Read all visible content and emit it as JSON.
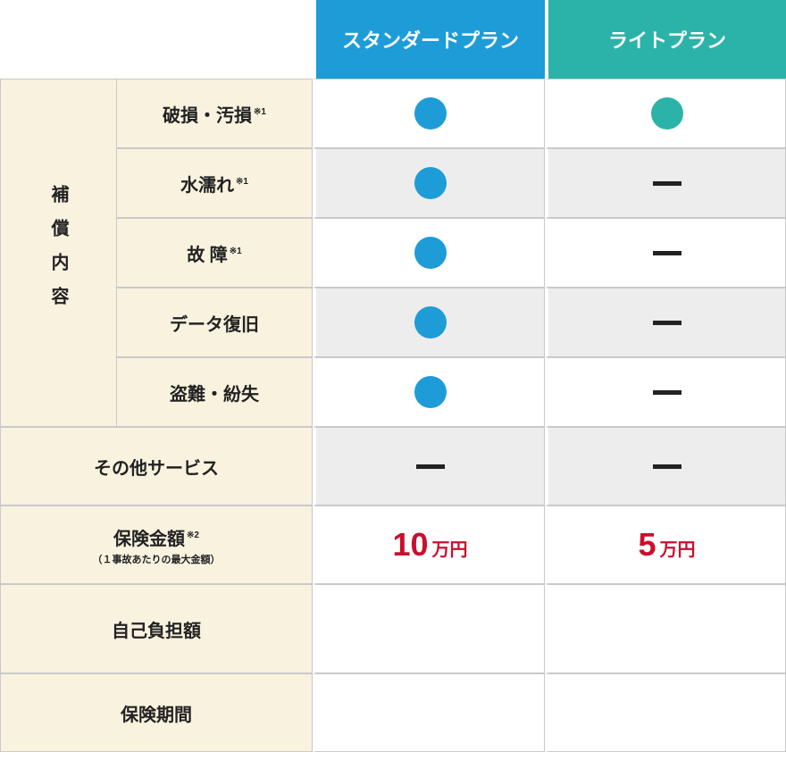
{
  "header": {
    "plan_standard": "スタンダードプラン",
    "plan_light": "ライトプラン"
  },
  "vcategory": "補償内容",
  "rows": {
    "r1": {
      "label": "破損・汚損",
      "note": "※1"
    },
    "r2": {
      "label": "水濡れ",
      "note": "※1"
    },
    "r3": {
      "label": "故  障",
      "note": "※1"
    },
    "r4": {
      "label": "データ復旧"
    },
    "r5": {
      "label": "盗難・紛失"
    },
    "r6": {
      "label": "その他サービス"
    },
    "r7": {
      "label": "保険金額",
      "note": "※2",
      "sub": "（１事故あたりの最大金額）"
    },
    "r8": {
      "label": "自己負担額"
    },
    "r9": {
      "label": "保険期間"
    }
  },
  "values": {
    "std": {
      "amount_num": "10",
      "amount_unit": "万円"
    },
    "lt": {
      "amount_num": "5",
      "amount_unit": "万円"
    }
  },
  "colors": {
    "standard_header": "#1e9cd7",
    "light_header": "#2cb3a9",
    "cream": "#f8f2df",
    "alt_row": "#ededed",
    "border": "#c9c9c9",
    "amount": "#c8102e",
    "text": "#222222",
    "dot_standard": "#1e9cd7",
    "dot_light": "#2cb3a9"
  }
}
